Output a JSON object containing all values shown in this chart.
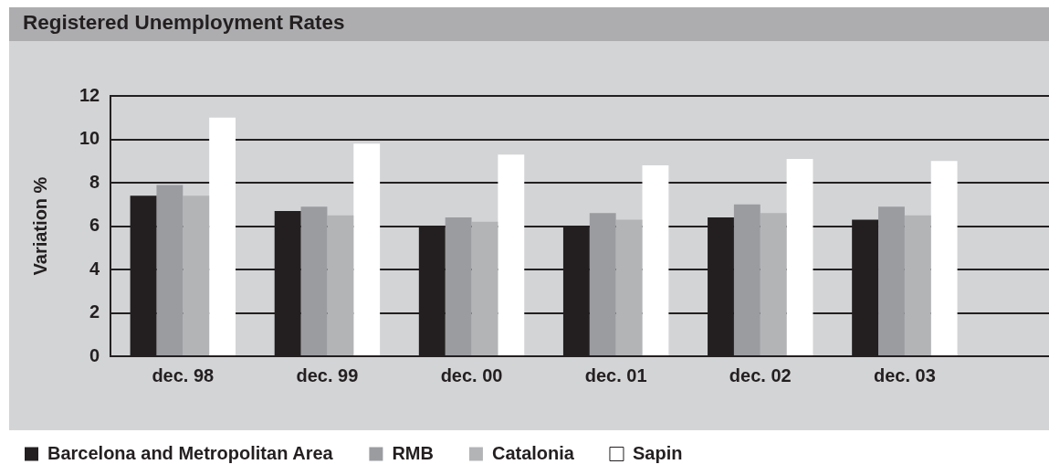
{
  "chart_data": {
    "type": "bar",
    "title": "Registered Unemployment Rates",
    "ylabel": "Variation %",
    "categories": [
      "dec. 98",
      "dec. 99",
      "dec. 00",
      "dec. 01",
      "dec. 02",
      "dec. 03"
    ],
    "series": [
      {
        "name": "Barcelona and Metropolitan Area",
        "color": "#231f20",
        "values": [
          7.4,
          6.7,
          6.0,
          6.0,
          6.4,
          6.3
        ]
      },
      {
        "name": "RMB",
        "color": "#9b9ca0",
        "values": [
          7.9,
          6.9,
          6.4,
          6.6,
          7.0,
          6.9
        ]
      },
      {
        "name": "Catalonia",
        "color": "#b3b4b6",
        "values": [
          7.4,
          6.5,
          6.2,
          6.3,
          6.6,
          6.5
        ]
      },
      {
        "name": "Sapin",
        "color": "#ffffff",
        "values": [
          11.0,
          9.8,
          9.3,
          8.8,
          9.1,
          9.0
        ]
      }
    ],
    "ylim": [
      0,
      12
    ],
    "yticks": [
      0,
      2,
      4,
      6,
      8,
      10,
      12
    ],
    "grid": "y",
    "legend": "bottom left"
  }
}
